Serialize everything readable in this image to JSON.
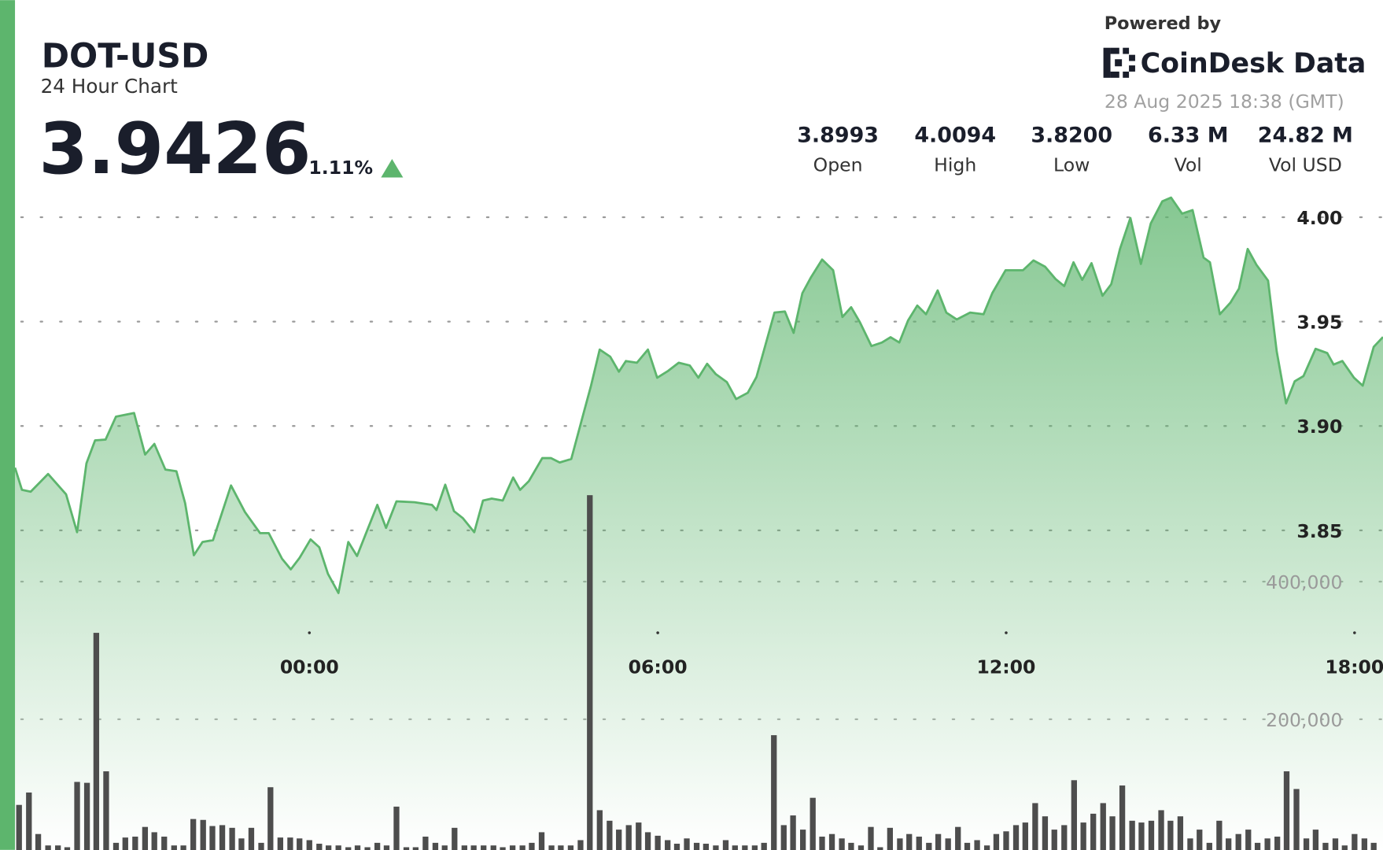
{
  "header": {
    "title": "DOT-USD",
    "subtitle": "24 Hour Chart",
    "price": "3.9426",
    "change": "1.11%",
    "powered_by": "Powered by",
    "brand": "CoinDesk Data",
    "timestamp": "28 Aug 2025 18:38 (GMT)",
    "stats": [
      {
        "value": "3.8993",
        "label": "Open"
      },
      {
        "value": "4.0094",
        "label": "High"
      },
      {
        "value": "3.8200",
        "label": "Low"
      },
      {
        "value": "6.33 M",
        "label": "Vol"
      },
      {
        "value": "24.82 M",
        "label": "Vol USD"
      }
    ]
  },
  "chart_data": {
    "type": "combo",
    "xlim": [
      -5.07,
      18.49
    ],
    "xticks": [
      {
        "value": 0,
        "label": "00:00"
      },
      {
        "value": 6,
        "label": "06:00"
      },
      {
        "value": 12,
        "label": "12:00"
      },
      {
        "value": 18,
        "label": "18:00"
      }
    ],
    "ylim": [
      3.7,
      4.05
    ],
    "yticks": [
      3.85,
      {
        "value": 3.9,
        "label": "3.90"
      },
      3.95,
      {
        "value": 4.0,
        "label": "4.00"
      }
    ],
    "y2lim": [
      0,
      600000
    ],
    "y2ticks": [
      {
        "value": 200000,
        "label": "200,000"
      },
      {
        "value": 400000,
        "label": "400,000"
      }
    ],
    "grid": true,
    "series": [
      {
        "type": "area",
        "color": "#5db56d",
        "x": [
          -5.07,
          -4.95,
          -4.8,
          -4.5,
          -4.19,
          -4.0,
          -3.84,
          -3.69,
          -3.51,
          -3.33,
          -3.02,
          -2.83,
          -2.67,
          -2.48,
          -2.29,
          -2.14,
          -1.99,
          -1.84,
          -1.66,
          -1.35,
          -1.11,
          -0.85,
          -0.7,
          -0.47,
          -0.32,
          -0.17,
          0.02,
          0.17,
          0.32,
          0.5,
          0.67,
          0.82,
          0.97,
          1.17,
          1.32,
          1.5,
          1.81,
          2.11,
          2.19,
          2.34,
          2.49,
          2.64,
          2.84,
          2.99,
          3.14,
          3.33,
          3.51,
          3.63,
          3.78,
          4.01,
          4.16,
          4.31,
          4.51,
          4.69,
          4.85,
          5.0,
          5.18,
          5.33,
          5.45,
          5.64,
          5.83,
          5.99,
          6.18,
          6.36,
          6.55,
          6.7,
          6.85,
          7.0,
          7.19,
          7.35,
          7.55,
          7.7,
          7.85,
          8.01,
          8.19,
          8.34,
          8.49,
          8.64,
          8.83,
          9.02,
          9.18,
          9.33,
          9.48,
          9.68,
          9.86,
          10.01,
          10.16,
          10.31,
          10.47,
          10.62,
          10.82,
          10.97,
          11.15,
          11.38,
          11.61,
          11.76,
          11.99,
          12.29,
          12.47,
          12.67,
          12.85,
          13.0,
          13.16,
          13.31,
          13.47,
          13.66,
          13.81,
          13.96,
          14.14,
          14.32,
          14.49,
          14.69,
          14.84,
          15.03,
          15.21,
          15.4,
          15.51,
          15.68,
          15.86,
          16.01,
          16.16,
          16.31,
          16.51,
          16.66,
          16.82,
          16.97,
          17.12,
          17.33,
          17.53,
          17.64,
          17.79,
          17.99,
          18.14,
          18.33,
          18.49
        ],
        "values": [
          3.88,
          3.8694,
          3.8685,
          3.877,
          3.8673,
          3.8491,
          3.8821,
          3.8931,
          3.8935,
          3.9045,
          3.9062,
          3.8863,
          3.8914,
          3.8791,
          3.8783,
          3.863,
          3.8381,
          3.8444,
          3.8453,
          3.8715,
          3.8588,
          3.8487,
          3.8487,
          3.8364,
          3.8313,
          3.8368,
          3.8457,
          3.8419,
          3.8292,
          3.82,
          3.8444,
          3.8377,
          3.8482,
          3.8622,
          3.8512,
          3.8639,
          3.8635,
          3.8622,
          3.8597,
          3.8719,
          3.8592,
          3.8559,
          3.8491,
          3.8643,
          3.8652,
          3.8643,
          3.8753,
          3.8694,
          3.8736,
          3.8846,
          3.8846,
          3.8825,
          3.8842,
          3.9028,
          3.9193,
          3.9366,
          3.9332,
          3.926,
          3.9311,
          3.9303,
          3.9366,
          3.9231,
          3.9264,
          3.9303,
          3.929,
          3.9231,
          3.9298,
          3.9248,
          3.921,
          3.9129,
          3.9159,
          3.9235,
          3.9383,
          3.9543,
          3.9548,
          3.9446,
          3.9636,
          3.9713,
          3.9797,
          3.9746,
          3.9522,
          3.9569,
          3.9497,
          3.9383,
          3.94,
          3.9425,
          3.94,
          3.9505,
          3.9577,
          3.9535,
          3.9649,
          3.9543,
          3.951,
          3.9543,
          3.9535,
          3.9636,
          3.9746,
          3.9746,
          3.9793,
          3.9763,
          3.9704,
          3.967,
          3.9784,
          3.97,
          3.978,
          3.9624,
          3.9679,
          3.9848,
          3.9996,
          3.9776,
          3.997,
          4.0076,
          4.0094,
          4.0017,
          4.0034,
          3.9806,
          3.9784,
          3.9535,
          3.959,
          3.9658,
          3.9848,
          3.9772,
          3.9696,
          3.9357,
          3.9108,
          3.9214,
          3.9239,
          3.937,
          3.9349,
          3.9294,
          3.9311,
          3.9231,
          3.9193,
          3.9379,
          3.9426
        ]
      },
      {
        "type": "bar",
        "axis": "y2",
        "color": "#4d4d4d",
        "x": [
          -5,
          -4.83,
          -4.67,
          -4.5,
          -4.33,
          -4.17,
          -4,
          -3.83,
          -3.67,
          -3.5,
          -3.33,
          -3.17,
          -3,
          -2.83,
          -2.67,
          -2.5,
          -2.33,
          -2.17,
          -2,
          -1.83,
          -1.67,
          -1.5,
          -1.33,
          -1.17,
          -1,
          -0.83,
          -0.67,
          -0.5,
          -0.33,
          -0.17,
          0,
          0.17,
          0.33,
          0.5,
          0.67,
          0.83,
          1,
          1.17,
          1.33,
          1.5,
          1.67,
          1.83,
          2,
          2.17,
          2.33,
          2.5,
          2.67,
          2.83,
          3,
          3.17,
          3.33,
          3.5,
          3.67,
          3.83,
          4,
          4.17,
          4.33,
          4.5,
          4.67,
          4.83,
          5,
          5.17,
          5.33,
          5.5,
          5.67,
          5.83,
          6,
          6.17,
          6.33,
          6.5,
          6.67,
          6.83,
          7,
          7.17,
          7.33,
          7.5,
          7.67,
          7.83,
          8,
          8.17,
          8.33,
          8.5,
          8.67,
          8.83,
          9,
          9.17,
          9.33,
          9.5,
          9.67,
          9.83,
          10,
          10.17,
          10.33,
          10.5,
          10.67,
          10.83,
          11,
          11.17,
          11.33,
          11.5,
          11.67,
          11.83,
          12,
          12.17,
          12.33,
          12.5,
          12.67,
          12.83,
          13,
          13.17,
          13.33,
          13.5,
          13.67,
          13.83,
          14,
          14.17,
          14.33,
          14.5,
          14.67,
          14.83,
          15,
          15.17,
          15.33,
          15.5,
          15.67,
          15.83,
          16,
          16.17,
          16.33,
          16.5,
          16.67,
          16.83,
          17,
          17.17,
          17.33,
          17.5,
          17.67,
          17.83,
          18,
          18.17,
          18.33
        ],
        "values": [
          75600,
          93600,
          33300,
          16700,
          16700,
          14100,
          109000,
          107700,
          325600,
          124400,
          20500,
          28200,
          29500,
          43600,
          35900,
          29500,
          16700,
          16700,
          55100,
          53800,
          44900,
          46200,
          42300,
          26900,
          42300,
          20500,
          101300,
          28200,
          28200,
          26900,
          24400,
          19200,
          16700,
          16700,
          14100,
          16700,
          14100,
          20500,
          16700,
          73100,
          14100,
          14100,
          29500,
          20500,
          16700,
          42300,
          16700,
          16700,
          16700,
          16700,
          14100,
          16700,
          16700,
          20500,
          35900,
          16700,
          16700,
          16700,
          24400,
          525600,
          67900,
          52600,
          39700,
          46200,
          50000,
          35900,
          30800,
          24400,
          19200,
          26900,
          20500,
          19200,
          16700,
          24400,
          16700,
          16700,
          16700,
          20500,
          176900,
          46200,
          60300,
          39700,
          85900,
          29500,
          33300,
          26900,
          20500,
          16700,
          43600,
          14100,
          42300,
          26900,
          33300,
          29500,
          20500,
          33300,
          26900,
          43600,
          20500,
          24400,
          16700,
          33300,
          37200,
          46200,
          50000,
          78200,
          59000,
          39700,
          46200,
          111500,
          50000,
          62800,
          78200,
          59000,
          103800,
          52600,
          50000,
          52600,
          67900,
          52600,
          59000,
          26900,
          39700,
          20500,
          52600,
          26900,
          33300,
          39700,
          20500,
          26900,
          29500,
          124400,
          98700,
          26900,
          39700,
          20500,
          26900,
          16700,
          33300,
          26900,
          20500
        ]
      }
    ]
  }
}
